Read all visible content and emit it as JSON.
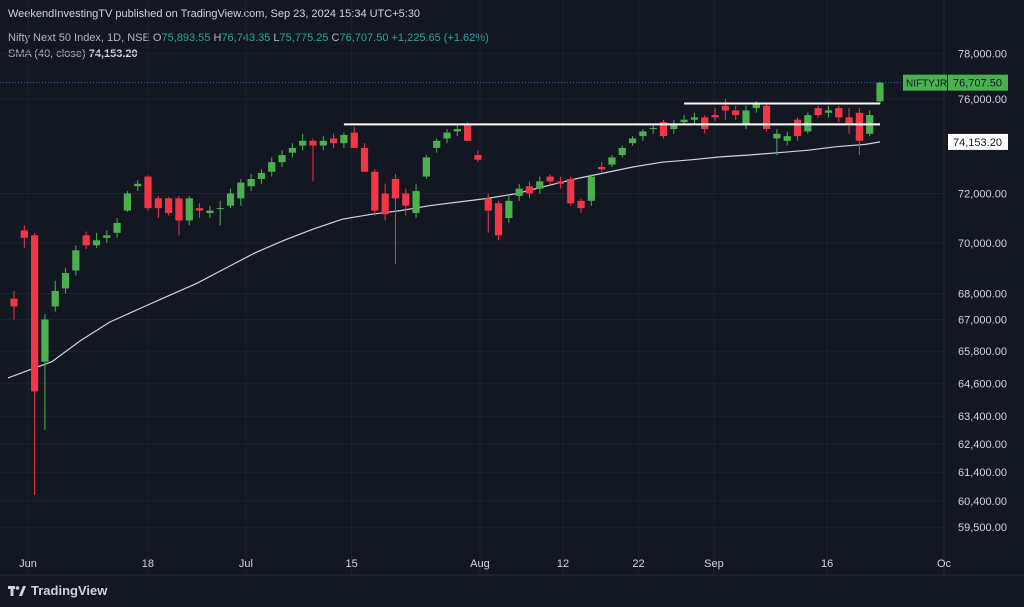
{
  "header": {
    "publisher_line": "WeekendInvestingTV published on TradingView.com, Sep 23, 2024 15:34 UTC+5:30",
    "instrument": "Nifty Next 50 Index, 1D, NSE",
    "open_label": "O",
    "open": "75,893.55",
    "high_label": "H",
    "high": "76,743.35",
    "low_label": "L",
    "low": "75,775.25",
    "close_label": "C",
    "close": "76,707.50",
    "change": "+1,225.65 (+1.62%)",
    "sma_label": "SMA (40, close)",
    "sma_value": "74,153.20"
  },
  "branding": {
    "name": "TradingView",
    "icon": "tradingview-logo-icon"
  },
  "colors": {
    "background": "#131722",
    "up": "#4caf50",
    "down": "#f23645",
    "sma": "#d1d4dc",
    "text": "#d1d4dc",
    "grid": "#1e2230",
    "lastline": "#2962ff",
    "tag_green": "#4caf50"
  },
  "chart_data": {
    "type": "candlestick",
    "y_scale": "log",
    "ylim": [
      59000,
      78600
    ],
    "y_ticks": [
      {
        "value": 78000,
        "label": "78,000.00"
      },
      {
        "value": 76000,
        "label": "76,000.00"
      },
      {
        "value": 72000,
        "label": "72,000.00"
      },
      {
        "value": 70000,
        "label": "70,000.00"
      },
      {
        "value": 68000,
        "label": "68,000.00"
      },
      {
        "value": 67000,
        "label": "67,000.00"
      },
      {
        "value": 65800,
        "label": "65,800.00"
      },
      {
        "value": 64600,
        "label": "64,600.00"
      },
      {
        "value": 63400,
        "label": "63,400.00"
      },
      {
        "value": 62400,
        "label": "62,400.00"
      },
      {
        "value": 61400,
        "label": "61,400.00"
      },
      {
        "value": 60400,
        "label": "60,400.00"
      },
      {
        "value": 59500,
        "label": "59,500.00"
      }
    ],
    "x_ticks": [
      {
        "date": "2024-06-01",
        "label": "Jun"
      },
      {
        "date": "2024-06-18",
        "label": "18"
      },
      {
        "date": "2024-07-01",
        "label": "Jul"
      },
      {
        "date": "2024-07-15",
        "label": "15"
      },
      {
        "date": "2024-08-01",
        "label": "Aug"
      },
      {
        "date": "2024-08-12",
        "label": "12"
      },
      {
        "date": "2024-08-22",
        "label": "22"
      },
      {
        "date": "2024-09-01",
        "label": "Sep"
      },
      {
        "date": "2024-09-16",
        "label": "16"
      },
      {
        "date": "2024-10-01",
        "label": "Oc"
      }
    ],
    "candles": [
      {
        "date": "2024-05-28",
        "o": 67800,
        "h": 68100,
        "l": 67000,
        "c": 67500
      },
      {
        "date": "2024-05-31",
        "o": 70500,
        "h": 70700,
        "l": 69800,
        "c": 70200
      },
      {
        "date": "2024-06-03",
        "o": 70300,
        "h": 70400,
        "l": 60600,
        "c": 64300
      },
      {
        "date": "2024-06-04",
        "o": 65400,
        "h": 67200,
        "l": 62900,
        "c": 67000
      },
      {
        "date": "2024-06-05",
        "o": 67500,
        "h": 68500,
        "l": 67300,
        "c": 68100
      },
      {
        "date": "2024-06-06",
        "o": 68200,
        "h": 69000,
        "l": 68000,
        "c": 68800
      },
      {
        "date": "2024-06-07",
        "o": 68900,
        "h": 69900,
        "l": 68700,
        "c": 69700
      },
      {
        "date": "2024-06-10",
        "o": 70300,
        "h": 70450,
        "l": 69750,
        "c": 69900
      },
      {
        "date": "2024-06-11",
        "o": 69900,
        "h": 70400,
        "l": 69800,
        "c": 70100
      },
      {
        "date": "2024-06-12",
        "o": 70200,
        "h": 70500,
        "l": 70000,
        "c": 70300
      },
      {
        "date": "2024-06-13",
        "o": 70400,
        "h": 71000,
        "l": 70200,
        "c": 70800
      },
      {
        "date": "2024-06-14",
        "o": 71300,
        "h": 72100,
        "l": 71250,
        "c": 72000
      },
      {
        "date": "2024-06-17",
        "o": 72300,
        "h": 72550,
        "l": 72100,
        "c": 72400
      },
      {
        "date": "2024-06-18",
        "o": 72700,
        "h": 72750,
        "l": 71300,
        "c": 71400
      },
      {
        "date": "2024-06-19",
        "o": 71800,
        "h": 71900,
        "l": 71000,
        "c": 71400
      },
      {
        "date": "2024-06-20",
        "o": 71800,
        "h": 71850,
        "l": 71100,
        "c": 71200
      },
      {
        "date": "2024-06-21",
        "o": 71800,
        "h": 71900,
        "l": 70300,
        "c": 70900
      },
      {
        "date": "2024-06-24",
        "o": 70900,
        "h": 71900,
        "l": 70700,
        "c": 71800
      },
      {
        "date": "2024-06-25",
        "o": 71400,
        "h": 71600,
        "l": 71000,
        "c": 71300
      },
      {
        "date": "2024-06-26",
        "o": 71200,
        "h": 71500,
        "l": 71000,
        "c": 71300
      },
      {
        "date": "2024-06-27",
        "o": 71400,
        "h": 71700,
        "l": 70700,
        "c": 71400
      },
      {
        "date": "2024-06-28",
        "o": 71500,
        "h": 72200,
        "l": 71400,
        "c": 72000
      },
      {
        "date": "2024-07-01",
        "o": 71800,
        "h": 72600,
        "l": 71500,
        "c": 72450
      },
      {
        "date": "2024-07-02",
        "o": 72300,
        "h": 72800,
        "l": 72100,
        "c": 72600
      },
      {
        "date": "2024-07-03",
        "o": 72600,
        "h": 73000,
        "l": 72400,
        "c": 72850
      },
      {
        "date": "2024-07-04",
        "o": 72900,
        "h": 73500,
        "l": 72700,
        "c": 73300
      },
      {
        "date": "2024-07-05",
        "o": 73300,
        "h": 73800,
        "l": 73100,
        "c": 73600
      },
      {
        "date": "2024-07-08",
        "o": 73700,
        "h": 74100,
        "l": 73500,
        "c": 73900
      },
      {
        "date": "2024-07-09",
        "o": 74000,
        "h": 74500,
        "l": 73800,
        "c": 74200
      },
      {
        "date": "2024-07-10",
        "o": 74200,
        "h": 74300,
        "l": 72500,
        "c": 74000
      },
      {
        "date": "2024-07-11",
        "o": 74000,
        "h": 74400,
        "l": 73800,
        "c": 74200
      },
      {
        "date": "2024-07-12",
        "o": 74300,
        "h": 74500,
        "l": 73900,
        "c": 74100
      },
      {
        "date": "2024-07-15",
        "o": 74100,
        "h": 74550,
        "l": 73900,
        "c": 74450
      },
      {
        "date": "2024-07-16",
        "o": 74550,
        "h": 74800,
        "l": 73900,
        "c": 73900
      },
      {
        "date": "2024-07-18",
        "o": 73900,
        "h": 74100,
        "l": 72900,
        "c": 72900
      },
      {
        "date": "2024-07-19",
        "o": 72900,
        "h": 73000,
        "l": 71100,
        "c": 71300
      },
      {
        "date": "2024-07-22",
        "o": 72000,
        "h": 72400,
        "l": 70900,
        "c": 71150
      },
      {
        "date": "2024-07-23",
        "o": 72600,
        "h": 72800,
        "l": 69150,
        "c": 71800
      },
      {
        "date": "2024-07-24",
        "o": 72000,
        "h": 72200,
        "l": 71100,
        "c": 71500
      },
      {
        "date": "2024-07-25",
        "o": 71200,
        "h": 72400,
        "l": 71000,
        "c": 72100
      },
      {
        "date": "2024-07-26",
        "o": 72700,
        "h": 73600,
        "l": 72600,
        "c": 73500
      },
      {
        "date": "2024-07-29",
        "o": 73900,
        "h": 74300,
        "l": 73700,
        "c": 74200
      },
      {
        "date": "2024-07-30",
        "o": 74300,
        "h": 74700,
        "l": 74100,
        "c": 74550
      },
      {
        "date": "2024-07-31",
        "o": 74600,
        "h": 74900,
        "l": 74400,
        "c": 74700
      },
      {
        "date": "2024-08-01",
        "o": 74900,
        "h": 75000,
        "l": 74200,
        "c": 74200
      },
      {
        "date": "2024-08-02",
        "o": 73600,
        "h": 73800,
        "l": 73300,
        "c": 73400
      },
      {
        "date": "2024-08-05",
        "o": 71800,
        "h": 72000,
        "l": 70400,
        "c": 71300
      },
      {
        "date": "2024-08-06",
        "o": 71600,
        "h": 71700,
        "l": 70100,
        "c": 70300
      },
      {
        "date": "2024-08-07",
        "o": 71000,
        "h": 71900,
        "l": 70800,
        "c": 71700
      },
      {
        "date": "2024-08-08",
        "o": 71900,
        "h": 72400,
        "l": 71700,
        "c": 72200
      },
      {
        "date": "2024-08-09",
        "o": 72300,
        "h": 72500,
        "l": 71800,
        "c": 72000
      },
      {
        "date": "2024-08-12",
        "o": 72200,
        "h": 72700,
        "l": 72000,
        "c": 72500
      },
      {
        "date": "2024-08-13",
        "o": 72700,
        "h": 72800,
        "l": 72400,
        "c": 72500
      },
      {
        "date": "2024-08-14",
        "o": 72500,
        "h": 72700,
        "l": 72200,
        "c": 72400
      },
      {
        "date": "2024-08-16",
        "o": 72600,
        "h": 72700,
        "l": 71500,
        "c": 71600
      },
      {
        "date": "2024-08-19",
        "o": 71700,
        "h": 71800,
        "l": 71200,
        "c": 71400
      },
      {
        "date": "2024-08-20",
        "o": 71700,
        "h": 72800,
        "l": 71500,
        "c": 72700
      },
      {
        "date": "2024-08-21",
        "o": 73100,
        "h": 73300,
        "l": 72900,
        "c": 73000
      },
      {
        "date": "2024-08-22",
        "o": 73200,
        "h": 73600,
        "l": 73100,
        "c": 73500
      },
      {
        "date": "2024-08-23",
        "o": 73600,
        "h": 74000,
        "l": 73500,
        "c": 73900
      },
      {
        "date": "2024-08-26",
        "o": 74100,
        "h": 74400,
        "l": 74000,
        "c": 74300
      },
      {
        "date": "2024-08-27",
        "o": 74400,
        "h": 74700,
        "l": 74200,
        "c": 74600
      },
      {
        "date": "2024-08-28",
        "o": 74700,
        "h": 74900,
        "l": 74500,
        "c": 74750
      },
      {
        "date": "2024-08-29",
        "o": 75000,
        "h": 75100,
        "l": 74300,
        "c": 74400
      },
      {
        "date": "2024-08-30",
        "o": 74700,
        "h": 75100,
        "l": 74500,
        "c": 74900
      },
      {
        "date": "2024-09-02",
        "o": 75000,
        "h": 75300,
        "l": 74850,
        "c": 75100
      },
      {
        "date": "2024-09-03",
        "o": 75100,
        "h": 75400,
        "l": 74900,
        "c": 75200
      },
      {
        "date": "2024-09-04",
        "o": 75200,
        "h": 75300,
        "l": 74500,
        "c": 74700
      },
      {
        "date": "2024-09-05",
        "o": 75300,
        "h": 75600,
        "l": 75050,
        "c": 75200
      },
      {
        "date": "2024-09-06",
        "o": 75700,
        "h": 76000,
        "l": 75100,
        "c": 75500
      },
      {
        "date": "2024-09-09",
        "o": 75500,
        "h": 75700,
        "l": 75100,
        "c": 75300
      },
      {
        "date": "2024-09-10",
        "o": 74900,
        "h": 75700,
        "l": 74700,
        "c": 75500
      },
      {
        "date": "2024-09-11",
        "o": 75600,
        "h": 75900,
        "l": 75400,
        "c": 75800
      },
      {
        "date": "2024-09-12",
        "o": 75700,
        "h": 75800,
        "l": 74600,
        "c": 74700
      },
      {
        "date": "2024-09-13",
        "o": 74300,
        "h": 74700,
        "l": 73600,
        "c": 74500
      },
      {
        "date": "2024-09-16",
        "o": 74200,
        "h": 74600,
        "l": 74000,
        "c": 74400
      },
      {
        "date": "2024-09-17",
        "o": 75100,
        "h": 75200,
        "l": 74200,
        "c": 74400
      },
      {
        "date": "2024-09-18",
        "o": 74600,
        "h": 75400,
        "l": 74500,
        "c": 75300
      },
      {
        "date": "2024-09-19",
        "o": 75600,
        "h": 75700,
        "l": 75200,
        "c": 75300
      },
      {
        "date": "2024-09-20",
        "o": 75400,
        "h": 75700,
        "l": 75200,
        "c": 75500
      },
      {
        "date": "2024-09-20b",
        "o": 75600,
        "h": 75700,
        "l": 75000,
        "c": 75200
      },
      {
        "date": "2024-09-20c",
        "o": 75200,
        "h": 75600,
        "l": 74500,
        "c": 74900
      },
      {
        "date": "2024-09-20d",
        "o": 75400,
        "h": 75600,
        "l": 73600,
        "c": 74200
      },
      {
        "date": "2024-09-20e",
        "o": 74500,
        "h": 75500,
        "l": 74400,
        "c": 75300
      },
      {
        "date": "2024-09-23",
        "o": 75893.55,
        "h": 76743.35,
        "l": 75775.25,
        "c": 76707.5
      }
    ],
    "sma_40": [
      [
        0,
        64800
      ],
      [
        3,
        65100
      ],
      [
        6,
        65400
      ],
      [
        10,
        66200
      ],
      [
        14,
        66900
      ],
      [
        18,
        67400
      ],
      [
        22,
        67900
      ],
      [
        26,
        68400
      ],
      [
        30,
        69000
      ],
      [
        34,
        69600
      ],
      [
        38,
        70100
      ],
      [
        42,
        70550
      ],
      [
        46,
        70950
      ],
      [
        50,
        71150
      ],
      [
        54,
        71300
      ],
      [
        58,
        71500
      ],
      [
        62,
        71650
      ],
      [
        66,
        71800
      ],
      [
        70,
        72000
      ],
      [
        74,
        72300
      ],
      [
        78,
        72600
      ],
      [
        82,
        72850
      ],
      [
        86,
        73100
      ],
      [
        90,
        73300
      ],
      [
        94,
        73400
      ],
      [
        98,
        73520
      ],
      [
        102,
        73600
      ],
      [
        106,
        73700
      ],
      [
        110,
        73800
      ],
      [
        114,
        73950
      ],
      [
        118,
        74050
      ],
      [
        120,
        74153.2
      ]
    ],
    "resistance_lines": [
      {
        "from_date": "2024-07-15",
        "to_date": "2024-09-23",
        "value": 74900
      },
      {
        "from_date": "2024-09-02",
        "to_date": "2024-09-23",
        "value": 75800
      }
    ],
    "last_price": {
      "value": 76707.5,
      "label": "76,707.50",
      "symbol": "NIFTYJR"
    },
    "sma_last": {
      "value": 74153.2,
      "label": "74,153.20"
    },
    "grid": true,
    "legend": "top-left"
  }
}
